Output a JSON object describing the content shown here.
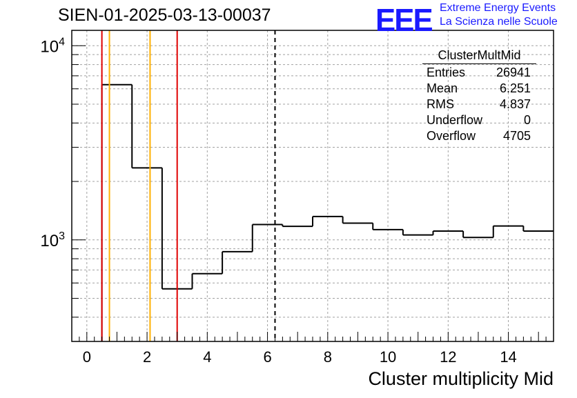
{
  "header": {
    "run_title": "SIEN-01-2025-03-13-00037",
    "logo_text": "EEE",
    "logo_line1": "Extreme Energy Events",
    "logo_line2": "La Scienza nelle Scuole",
    "logo_color": "#1a1aff"
  },
  "stats_box": {
    "title": "ClusterMultMid",
    "rows": [
      {
        "label": "Entries",
        "value": "26941"
      },
      {
        "label": "Mean",
        "value": "6.251"
      },
      {
        "label": "RMS",
        "value": "4.837"
      },
      {
        "label": "Underflow",
        "value": "0"
      },
      {
        "label": "Overflow",
        "value": "4705"
      }
    ]
  },
  "chart_data": {
    "type": "histogram",
    "title": "SIEN-01-2025-03-13-00037",
    "xlabel": "Cluster multiplicity Mid",
    "ylabel": "",
    "xlim": [
      -0.5,
      15.5
    ],
    "ylim": [
      300,
      12000
    ],
    "yscale": "log",
    "grid": true,
    "x_ticks": [
      0,
      2,
      4,
      6,
      8,
      10,
      12,
      14
    ],
    "y_ticks": [
      {
        "value": 1000,
        "base": "10",
        "exp": "3"
      },
      {
        "value": 10000,
        "base": "10",
        "exp": "4"
      }
    ],
    "bins": {
      "edges": [
        0.5,
        1.5,
        2.5,
        3.5,
        4.5,
        5.5,
        6.5,
        7.5,
        8.5,
        9.5,
        10.5,
        11.5,
        12.5,
        13.5,
        14.5,
        15.5
      ],
      "counts": [
        6300,
        2350,
        560,
        670,
        870,
        1200,
        1175,
        1320,
        1220,
        1130,
        1060,
        1110,
        1030,
        1180,
        1110
      ]
    },
    "vertical_lines": [
      {
        "x": 0.5,
        "color": "#e00000",
        "style": "solid"
      },
      {
        "x": 0.75,
        "color": "#ffb000",
        "style": "solid"
      },
      {
        "x": 2.1,
        "color": "#ffb000",
        "style": "solid"
      },
      {
        "x": 3.0,
        "color": "#e00000",
        "style": "solid"
      },
      {
        "x": 6.25,
        "color": "#000000",
        "style": "dashed"
      }
    ],
    "legend": "stats box top-right"
  }
}
